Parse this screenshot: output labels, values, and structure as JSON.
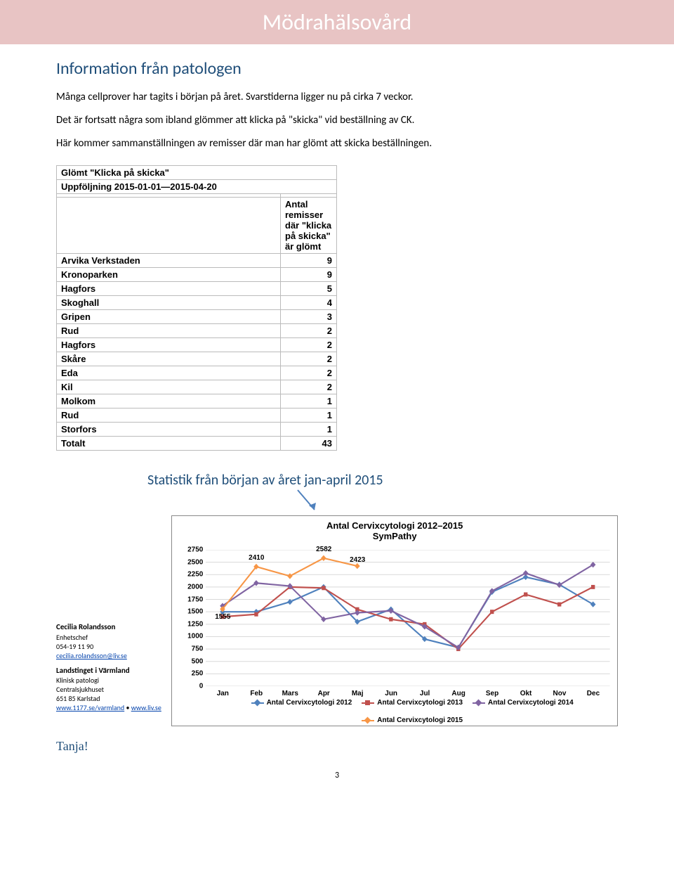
{
  "banner": {
    "title": "Mödrahälsovård"
  },
  "section1": {
    "heading": "Information från patologen",
    "p1": "Många cellprover har tagits i början på året. Svarstiderna ligger nu på cirka 7 veckor.",
    "p2": "Det är fortsatt några som ibland glömmer att klicka på \"skicka\" vid beställning av CK.",
    "p3": "Här kommer sammanställningen av remisser där man har glömt att skicka beställningen."
  },
  "table": {
    "title": "Glömt \"Klicka på skicka\"",
    "subtitle": "Uppföljning 2015-01-01—2015-04-20",
    "col_header": "Antal remisser där \"klicka på skicka\" är glömt",
    "rows": [
      {
        "label": "Arvika Verkstaden",
        "value": 9
      },
      {
        "label": "Kronoparken",
        "value": 9
      },
      {
        "label": "Hagfors",
        "value": 5
      },
      {
        "label": "Skoghall",
        "value": 4
      },
      {
        "label": "Gripen",
        "value": 3
      },
      {
        "label": "Rud",
        "value": 2
      },
      {
        "label": "Hagfors",
        "value": 2
      },
      {
        "label": "Skåre",
        "value": 2
      },
      {
        "label": "Eda",
        "value": 2
      },
      {
        "label": "Kil",
        "value": 2
      },
      {
        "label": "Molkom",
        "value": 1
      },
      {
        "label": "Rud",
        "value": 1
      },
      {
        "label": "Storfors",
        "value": 1
      }
    ],
    "total_label": "Totalt",
    "total_value": 43
  },
  "stats_heading": "Statistik från början av året jan-april 2015",
  "contact": {
    "name": "Cecilia Rolandsson",
    "role": "Enhetschef",
    "phone": "054-19 11 90",
    "email": "cecilia.rolandsson@liv.se",
    "org": "Landstinget i Värmland",
    "dept": "Klinisk patologi",
    "hospital": "Centralsjukhuset",
    "addr": "651 85 Karlstad",
    "link1": "www.1177.se/varmland",
    "link_sep": " • ",
    "link2": "www.liv.se"
  },
  "chart": {
    "type": "line",
    "title": "Antal Cervixcytologi 2012–2015",
    "subtitle": "SymPathy",
    "ymin": 0,
    "ymax": 2750,
    "ytick_step": 250,
    "background_color": "#ffffff",
    "grid_color": "#d9d9d9",
    "months": [
      "Jan",
      "Feb",
      "Mars",
      "Apr",
      "Maj",
      "Jun",
      "Jul",
      "Aug",
      "Sep",
      "Okt",
      "Nov",
      "Dec"
    ],
    "series": [
      {
        "name": "Antal Cervixcytologi 2012",
        "color": "#4f81bd",
        "marker": "diamond",
        "values": [
          1500,
          1500,
          1700,
          2000,
          1300,
          1550,
          950,
          780,
          1900,
          2200,
          2050,
          1650
        ]
      },
      {
        "name": "Antal Cervixcytologi 2013",
        "color": "#c0504d",
        "marker": "square",
        "values": [
          1400,
          1450,
          2000,
          1980,
          1550,
          1350,
          1250,
          750,
          1500,
          1850,
          1650,
          2000
        ]
      },
      {
        "name": "Antal Cervixcytologi 2014",
        "color": "#8064a2",
        "marker": "diamond",
        "values": [
          1620,
          2080,
          2020,
          1350,
          1480,
          1520,
          1200,
          780,
          1920,
          2280,
          2040,
          2450
        ]
      },
      {
        "name": "Antal Cervixcytologi 2015",
        "color": "#f79646",
        "marker": "diamond",
        "values": [
          1555,
          2410,
          2220,
          2582,
          2423
        ]
      }
    ],
    "data_labels": [
      {
        "series": 3,
        "idx": 0,
        "text": "1555",
        "dy": 18
      },
      {
        "series": 3,
        "idx": 1,
        "text": "2410",
        "dy": -6
      },
      {
        "series": 3,
        "idx": 3,
        "text": "2582",
        "dy": -6
      },
      {
        "series": 3,
        "idx": 4,
        "text": "2423",
        "dy": -2
      }
    ]
  },
  "thanks": "Tanja!",
  "page_number": "3"
}
